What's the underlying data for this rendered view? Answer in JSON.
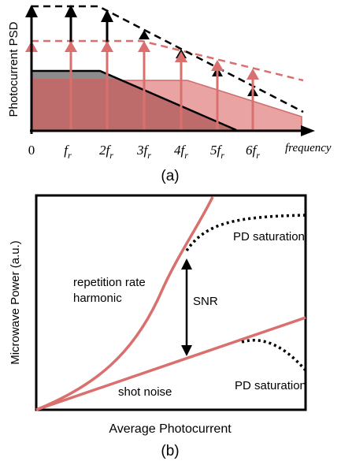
{
  "panel_a": {
    "y_axis_label": "Photocurrent PSD",
    "tick_labels": [
      {
        "base": "0",
        "sub": ""
      },
      {
        "base": "f",
        "sub": "r"
      },
      {
        "base": "2f",
        "sub": "r"
      },
      {
        "base": "3f",
        "sub": "r"
      },
      {
        "base": "4f",
        "sub": "r"
      },
      {
        "base": "5f",
        "sub": "r"
      },
      {
        "base": "6f",
        "sub": "r"
      }
    ],
    "x_axis_label": "frequency",
    "caption": "(a)"
  },
  "panel_b": {
    "y_axis_label": "Microwave Power (a.u.)",
    "x_axis_label": "Average Photocurrent",
    "labels": {
      "rep_rate_line1": "repetition rate",
      "rep_rate_line2": "harmonic",
      "snr": "SNR",
      "shot_noise": "shot noise",
      "pd_saturation_top": "PD saturation",
      "pd_saturation_bottom": "PD saturation"
    },
    "caption": "(b)"
  },
  "colors": {
    "salmon": "#d9706e",
    "salmon_fill": "#e9a3a3",
    "dark_fill": "#b86464",
    "gray_fill": "#8c8c8c",
    "black": "#000000"
  }
}
